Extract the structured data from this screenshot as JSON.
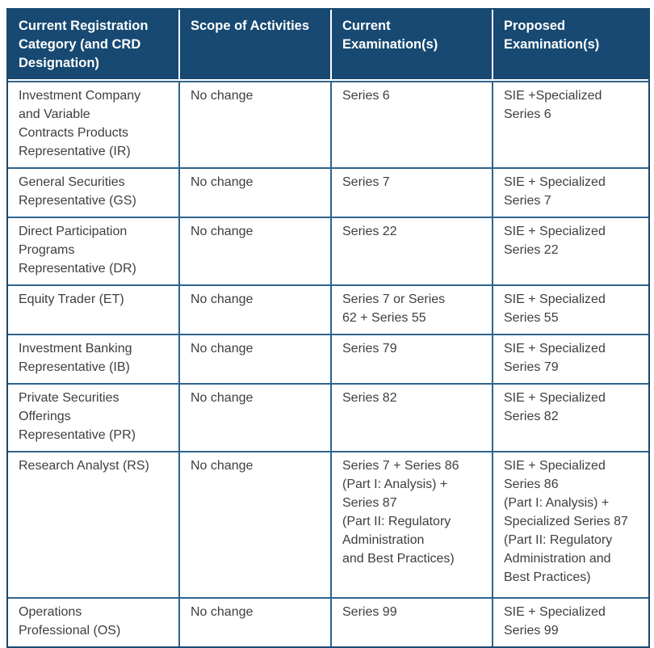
{
  "colors": {
    "header_background": "#174972",
    "header_text": "#ffffff",
    "body_text": "#3e3e40",
    "grid_border": "#2f638c",
    "outer_border": "#174972",
    "page_background": "#ffffff"
  },
  "table": {
    "headers": [
      {
        "label": "Current Registration\nCategory (and CRD\nDesignation)"
      },
      {
        "label": "Scope of Activities"
      },
      {
        "label": "Current\nExamination(s)"
      },
      {
        "label": "Proposed\nExamination(s)"
      }
    ],
    "rows": [
      {
        "category": "Investment Company\nand Variable\nContracts Products\nRepresentative (IR)",
        "scope": "No change",
        "current": "Series 6",
        "proposed": "SIE +Specialized\nSeries 6"
      },
      {
        "category": "General Securities\nRepresentative (GS)",
        "scope": "No change",
        "current": "Series 7",
        "proposed": "SIE + Specialized\nSeries 7"
      },
      {
        "category": "Direct Participation\nPrograms\nRepresentative (DR)",
        "scope": "No change",
        "current": "Series 22",
        "proposed": "SIE + Specialized\nSeries 22"
      },
      {
        "category": "Equity Trader (ET)",
        "scope": "No change",
        "current": "Series 7 or Series\n62 + Series 55",
        "proposed": "SIE + Specialized\nSeries 55"
      },
      {
        "category": "Investment Banking\nRepresentative (IB)",
        "scope": "No change",
        "current": "Series 79",
        "proposed": "SIE + Specialized\nSeries 79"
      },
      {
        "category": "Private Securities\nOfferings\nRepresentative (PR)",
        "scope": "No change",
        "current": "Series 82",
        "proposed": "SIE + Specialized\nSeries 82"
      },
      {
        "category": "Research Analyst (RS)",
        "scope": "No change",
        "current": "Series 7 + Series 86\n(Part I: Analysis) +\nSeries 87\n(Part II: Regulatory\nAdministration\nand Best Practices)",
        "proposed": "SIE + Specialized\nSeries 86\n(Part I: Analysis) +\nSpecialized Series 87\n(Part II: Regulatory\nAdministration and\nBest Practices)"
      },
      {
        "category": "Operations\nProfessional (OS)",
        "scope": "No change",
        "current": "Series 99",
        "proposed": "SIE + Specialized\nSeries 99"
      }
    ]
  }
}
